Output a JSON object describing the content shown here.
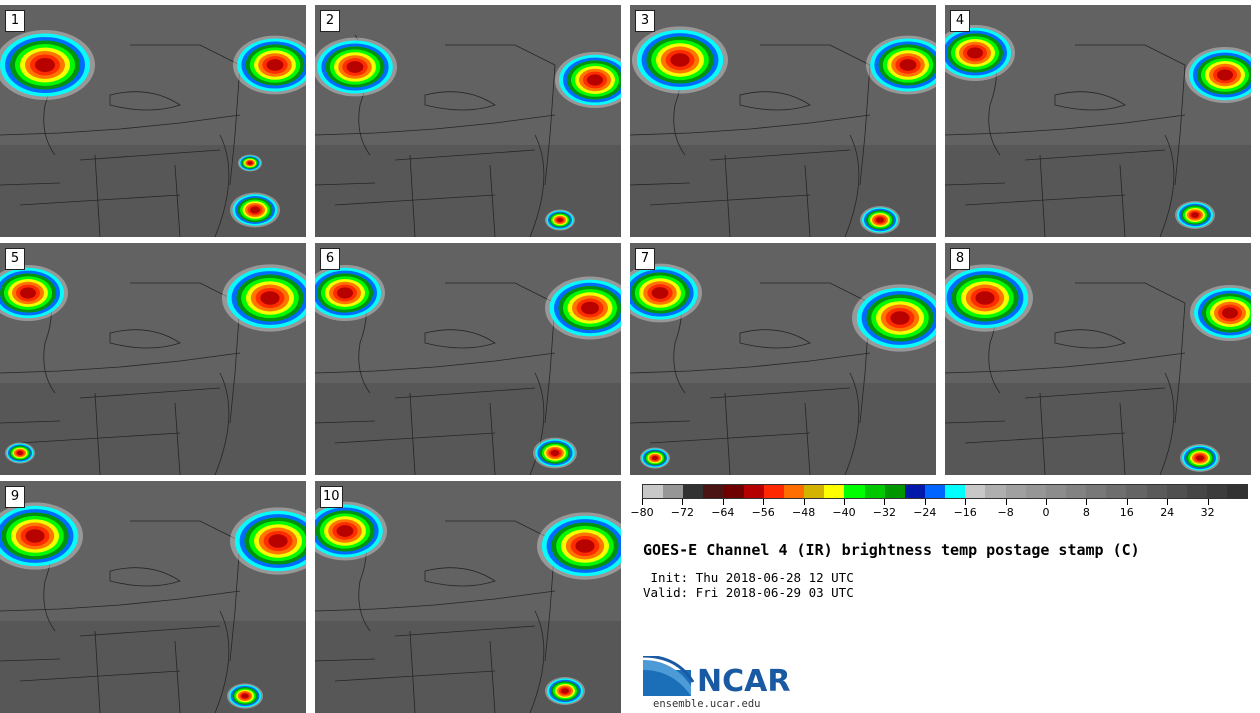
{
  "panels": [
    {
      "label": "1",
      "storms": [
        {
          "cx": 45,
          "cy": 60,
          "r": 50
        },
        {
          "cx": 275,
          "cy": 60,
          "r": 42
        },
        {
          "cx": 250,
          "cy": 158,
          "r": 12
        },
        {
          "cx": 255,
          "cy": 205,
          "r": 25
        }
      ]
    },
    {
      "label": "2",
      "storms": [
        {
          "cx": 40,
          "cy": 62,
          "r": 42
        },
        {
          "cx": 280,
          "cy": 75,
          "r": 40
        },
        {
          "cx": 245,
          "cy": 215,
          "r": 15
        }
      ]
    },
    {
      "label": "3",
      "storms": [
        {
          "cx": 50,
          "cy": 55,
          "r": 48
        },
        {
          "cx": 278,
          "cy": 60,
          "r": 42
        },
        {
          "cx": 250,
          "cy": 215,
          "r": 20
        }
      ]
    },
    {
      "label": "4",
      "storms": [
        {
          "cx": 30,
          "cy": 48,
          "r": 40
        },
        {
          "cx": 280,
          "cy": 70,
          "r": 40
        },
        {
          "cx": 250,
          "cy": 210,
          "r": 20
        }
      ]
    },
    {
      "label": "5",
      "storms": [
        {
          "cx": 28,
          "cy": 50,
          "r": 40
        },
        {
          "cx": 270,
          "cy": 55,
          "r": 48
        },
        {
          "cx": 20,
          "cy": 210,
          "r": 15
        }
      ]
    },
    {
      "label": "6",
      "storms": [
        {
          "cx": 30,
          "cy": 50,
          "r": 40
        },
        {
          "cx": 275,
          "cy": 65,
          "r": 45
        },
        {
          "cx": 240,
          "cy": 210,
          "r": 22
        }
      ]
    },
    {
      "label": "7",
      "storms": [
        {
          "cx": 30,
          "cy": 50,
          "r": 42
        },
        {
          "cx": 270,
          "cy": 75,
          "r": 48
        },
        {
          "cx": 25,
          "cy": 215,
          "r": 15
        }
      ]
    },
    {
      "label": "8",
      "storms": [
        {
          "cx": 40,
          "cy": 55,
          "r": 48
        },
        {
          "cx": 285,
          "cy": 70,
          "r": 40
        },
        {
          "cx": 255,
          "cy": 215,
          "r": 20
        }
      ]
    },
    {
      "label": "9",
      "storms": [
        {
          "cx": 35,
          "cy": 55,
          "r": 48
        },
        {
          "cx": 278,
          "cy": 60,
          "r": 48
        },
        {
          "cx": 245,
          "cy": 215,
          "r": 18
        }
      ]
    },
    {
      "label": "10",
      "storms": [
        {
          "cx": 30,
          "cy": 50,
          "r": 42
        },
        {
          "cx": 270,
          "cy": 65,
          "r": 48
        },
        {
          "cx": 250,
          "cy": 210,
          "r": 20
        }
      ]
    }
  ],
  "colorbar": {
    "colors": [
      "#c8c8c8",
      "#969696",
      "#323232",
      "#4b1414",
      "#6e0000",
      "#b40000",
      "#ff2800",
      "#ff6e00",
      "#d2b400",
      "#ffff00",
      "#00ff00",
      "#00c800",
      "#009600",
      "#0019aa",
      "#0064ff",
      "#00ffff",
      "#c8c8c8",
      "#afafaf",
      "#a0a0a0",
      "#969696",
      "#8c8c8c",
      "#828282",
      "#787878",
      "#6e6e6e",
      "#646464",
      "#5a5a5a",
      "#505050",
      "#464646",
      "#3c3c3c",
      "#323232"
    ],
    "tick_labels": [
      "−80",
      "−72",
      "−64",
      "−56",
      "−48",
      "−40",
      "−32",
      "−24",
      "−16",
      "−8",
      "0",
      "8",
      "16",
      "24",
      "32"
    ]
  },
  "title": "GOES-E Channel 4 (IR) brightness temp postage stamp (C)",
  "init": " Init: Thu 2018-06-28 12 UTC",
  "valid": "Valid: Fri 2018-06-29 03 UTC",
  "logo_text": "NCAR",
  "site": "ensemble.ucar.edu"
}
